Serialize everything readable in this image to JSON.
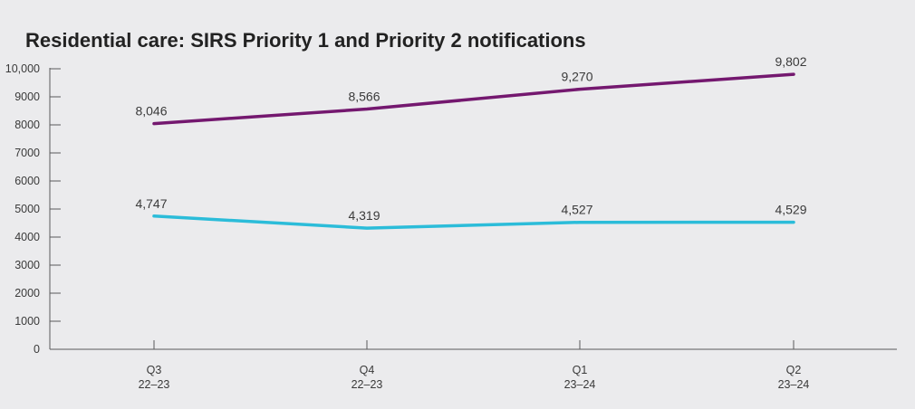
{
  "chart_data": {
    "type": "line",
    "title": "Residential care: SIRS Priority 1 and Priority 2 notifications",
    "categories": [
      [
        "Q3",
        "22–23"
      ],
      [
        "Q4",
        "22–23"
      ],
      [
        "Q1",
        "23–24"
      ],
      [
        "Q2",
        "23–24"
      ]
    ],
    "y_ticks": [
      "0",
      "1000",
      "2000",
      "3000",
      "4000",
      "5000",
      "6000",
      "7000",
      "8000",
      "9000",
      "10,000"
    ],
    "ylim": [
      0,
      10000
    ],
    "xlabel": "",
    "ylabel": "",
    "grid": false,
    "series": [
      {
        "color": "#74186f",
        "values": [
          8046,
          8566,
          9270,
          9802
        ],
        "labels": [
          "8,046",
          "8,566",
          "9,270",
          "9,802"
        ]
      },
      {
        "color": "#2bbcd9",
        "values": [
          4747,
          4319,
          4527,
          4529
        ],
        "labels": [
          "4,747",
          "4,319",
          "4,527",
          "4,529"
        ]
      }
    ]
  }
}
